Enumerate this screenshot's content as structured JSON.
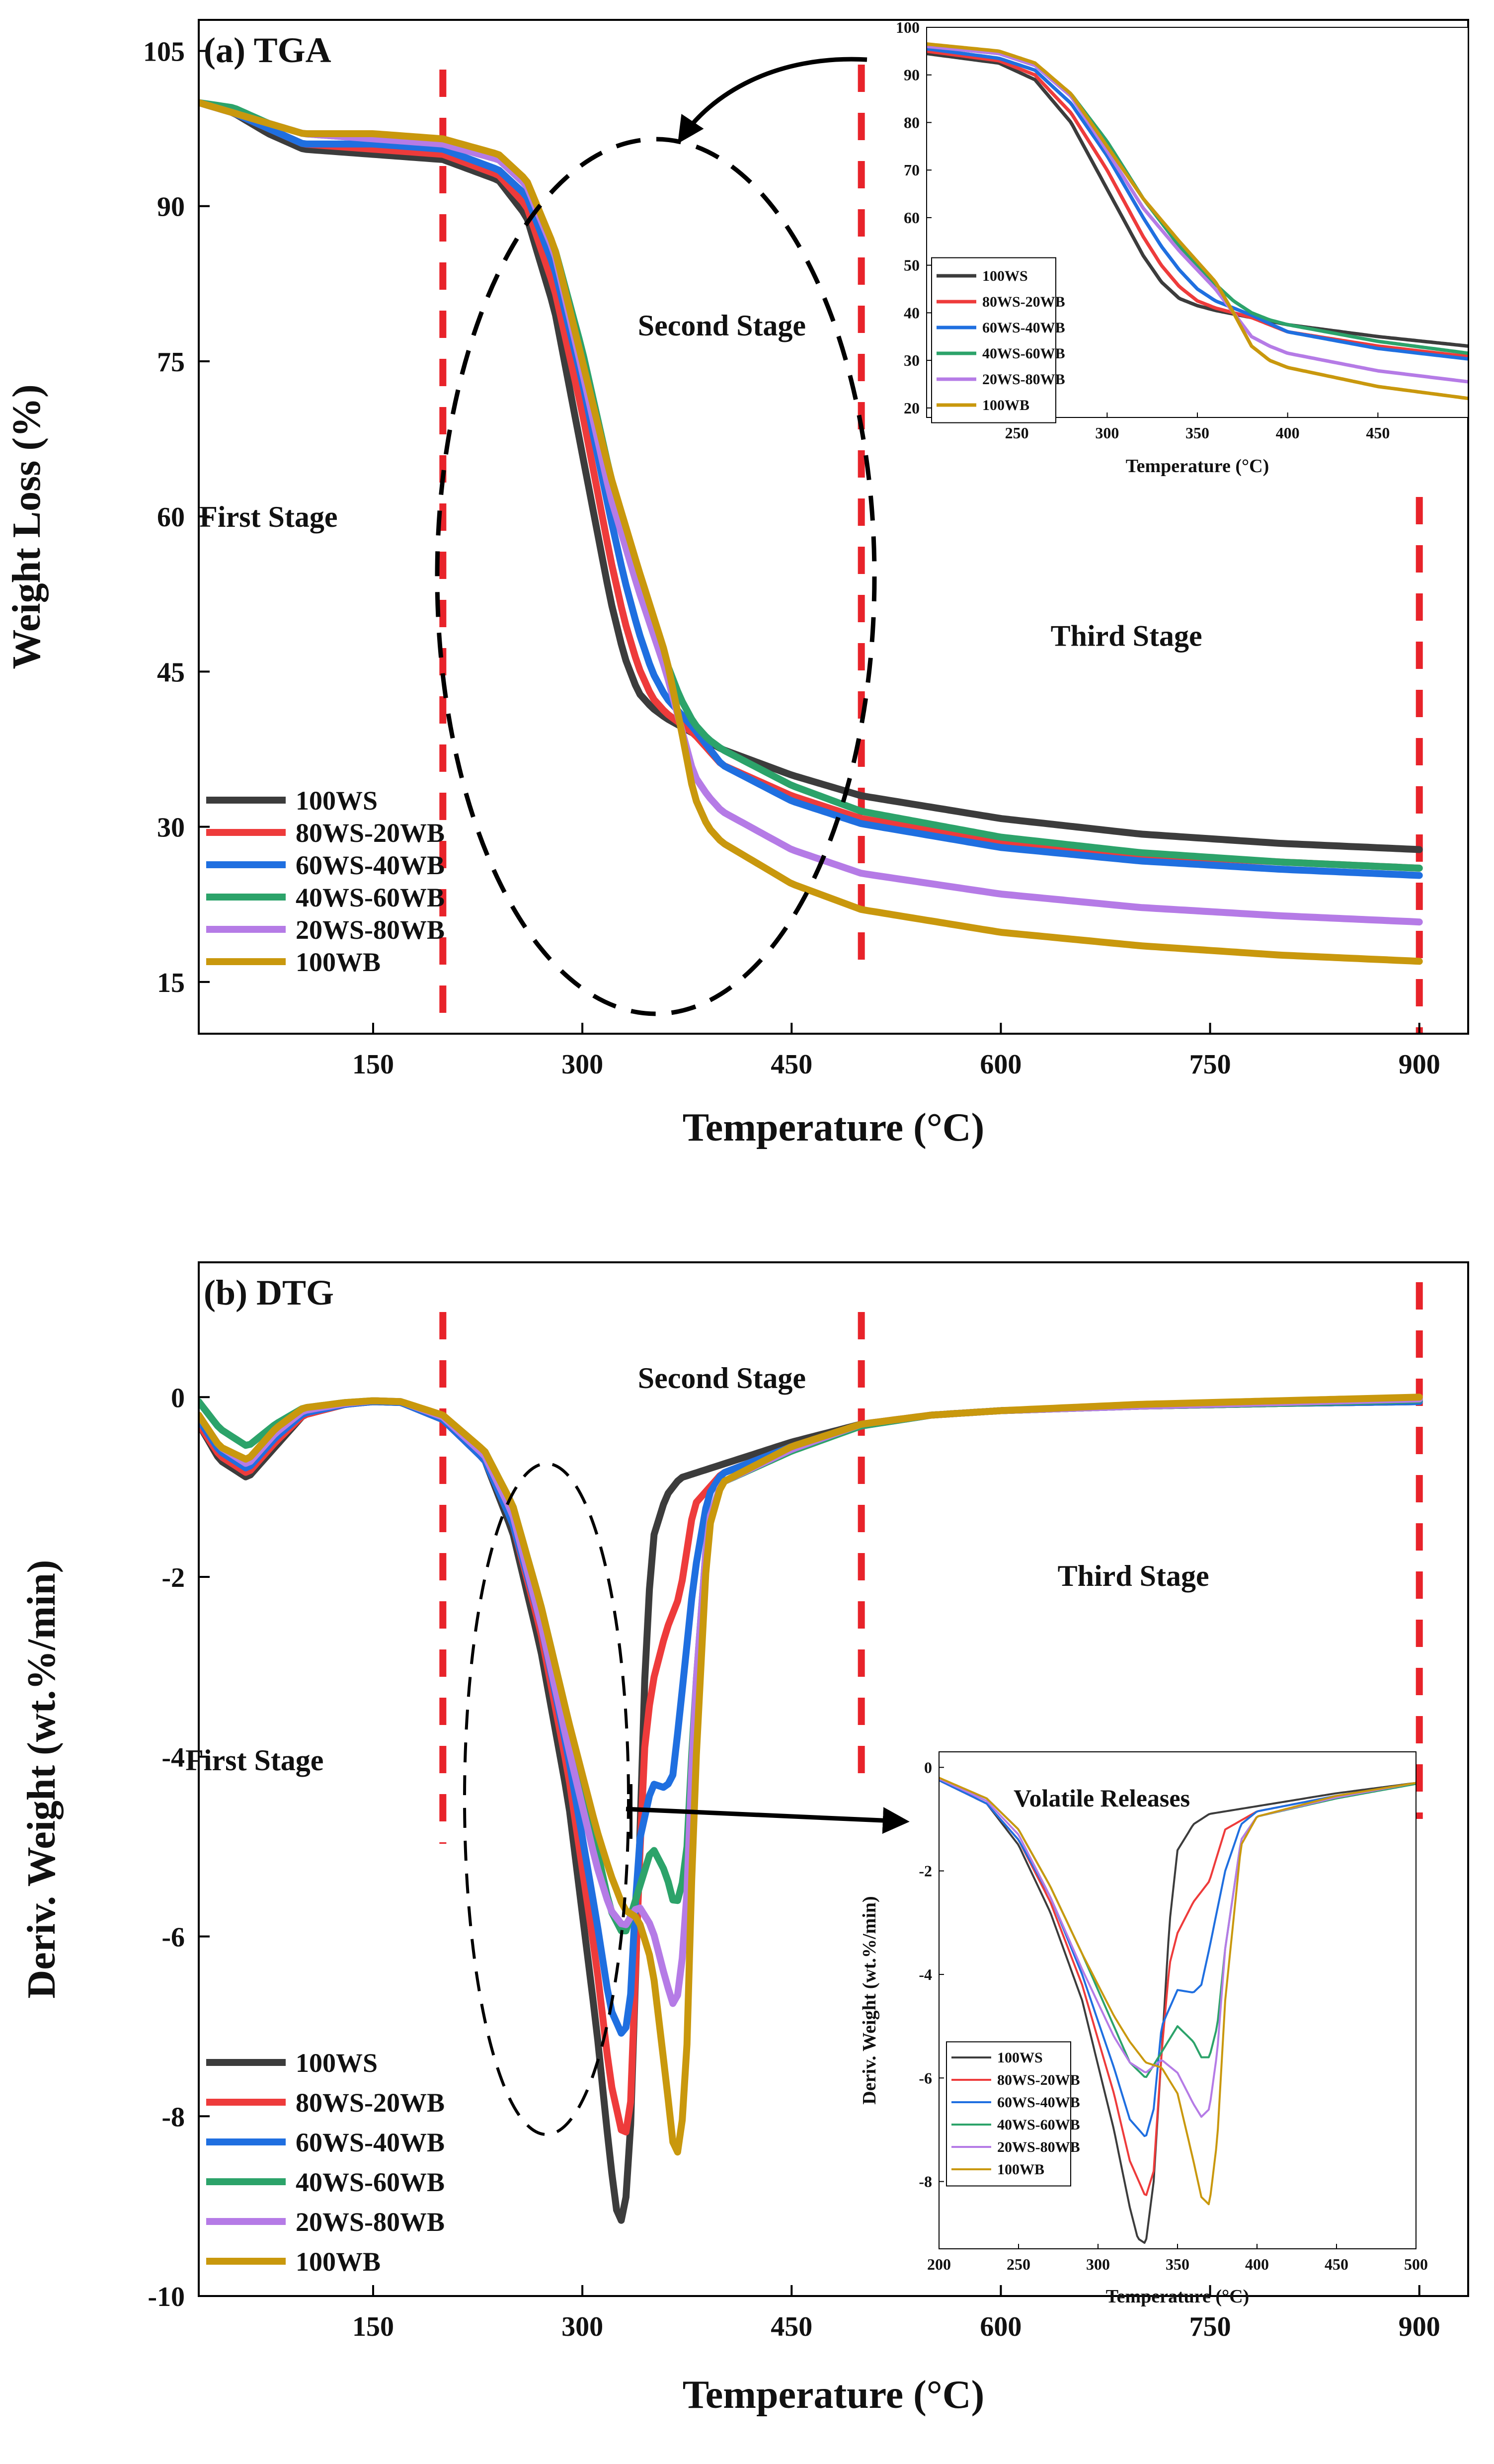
{
  "colors": {
    "100WS": "#3c3c3c",
    "80WS-20WB": "#ee3b3b",
    "60WS-40WB": "#1f6fe0",
    "40WS-60WB": "#2ca36a",
    "20WS-80WB": "#b57be6",
    "100WB": "#c9980d",
    "stage_divider": "#e8232a"
  },
  "chart_data": [
    {
      "id": "tga",
      "type": "line",
      "title": "(a) TGA",
      "xlabel": "Temperature (°C)",
      "ylabel": "Weight Loss (%)",
      "xlim": [
        25,
        935
      ],
      "ylim": [
        10,
        108
      ],
      "xticks": [
        150,
        300,
        450,
        600,
        750,
        900
      ],
      "yticks": [
        15,
        30,
        45,
        60,
        75,
        90,
        105
      ],
      "stage_lines_x": [
        200,
        500,
        900
      ],
      "stage_labels": [
        {
          "text": "First Stage",
          "x": 75,
          "y": 59
        },
        {
          "text": "Second Stage",
          "x": 400,
          "y": 77.5
        },
        {
          "text": "Third Stage",
          "x": 690,
          "y": 47.5
        }
      ],
      "annotation": "dashed ellipse around second stage with arrow to inset",
      "series": [
        {
          "name": "100WS",
          "x": [
            25,
            50,
            75,
            100,
            150,
            200,
            240,
            260,
            280,
            300,
            320,
            330,
            340,
            350,
            360,
            380,
            400,
            450,
            500,
            600,
            700,
            800,
            900
          ],
          "y": [
            100,
            99,
            97,
            95.5,
            95,
            94.5,
            92.5,
            89,
            80,
            66,
            52,
            46.5,
            43,
            41.5,
            40.5,
            39,
            37.5,
            35,
            33,
            30.8,
            29.3,
            28.4,
            27.8
          ]
        },
        {
          "name": "80WS-20WB",
          "x": [
            25,
            50,
            75,
            100,
            150,
            200,
            240,
            260,
            280,
            300,
            320,
            330,
            340,
            350,
            360,
            370,
            380,
            400,
            450,
            500,
            600,
            700,
            800,
            900
          ],
          "y": [
            100,
            99,
            97.5,
            96,
            95.5,
            95,
            93,
            90,
            82,
            70,
            56,
            50,
            45.5,
            42.5,
            41,
            40,
            39,
            36,
            33,
            30.8,
            28.5,
            27.3,
            26.6,
            26.0
          ]
        },
        {
          "name": "60WS-40WB",
          "x": [
            25,
            50,
            75,
            100,
            150,
            200,
            240,
            260,
            280,
            300,
            320,
            330,
            340,
            350,
            360,
            370,
            380,
            400,
            450,
            500,
            600,
            700,
            800,
            900
          ],
          "y": [
            100,
            99,
            97.5,
            96,
            96,
            95.5,
            93.5,
            91,
            84,
            73,
            60,
            54,
            49,
            45,
            42.5,
            41,
            39.5,
            36,
            32.5,
            30.3,
            28,
            26.7,
            25.9,
            25.3
          ]
        },
        {
          "name": "40WS-60WB",
          "x": [
            25,
            50,
            75,
            100,
            150,
            200,
            240,
            260,
            280,
            300,
            320,
            340,
            360,
            370,
            380,
            390,
            400,
            450,
            500,
            600,
            700,
            800,
            900
          ],
          "y": [
            100,
            99.5,
            98,
            97,
            96.5,
            96,
            94.5,
            92,
            86,
            76,
            64,
            54,
            46,
            42.5,
            40,
            38.5,
            37.5,
            34,
            31.5,
            29,
            27.5,
            26.6,
            26.0
          ]
        },
        {
          "name": "20WS-80WB",
          "x": [
            25,
            50,
            75,
            100,
            150,
            200,
            240,
            260,
            280,
            300,
            320,
            340,
            360,
            370,
            380,
            390,
            400,
            450,
            500,
            600,
            700,
            800,
            900
          ],
          "y": [
            100,
            99,
            98,
            97,
            96.5,
            96,
            94.5,
            92,
            85.5,
            74,
            62,
            53,
            45,
            40,
            35,
            33,
            31.5,
            27.8,
            25.5,
            23.5,
            22.2,
            21.4,
            20.8
          ]
        },
        {
          "name": "100WB",
          "x": [
            25,
            50,
            75,
            100,
            150,
            200,
            240,
            260,
            280,
            300,
            320,
            340,
            360,
            370,
            380,
            390,
            400,
            450,
            500,
            600,
            700,
            800,
            900
          ],
          "y": [
            100,
            99,
            98,
            97,
            97,
            96.5,
            95,
            92.5,
            86,
            75,
            64,
            55,
            46.5,
            40,
            33,
            30,
            28.5,
            24.5,
            22,
            19.8,
            18.5,
            17.6,
            17.0
          ]
        }
      ],
      "legend": [
        "100WS",
        "80WS-20WB",
        "60WS-40WB",
        "40WS-60WB",
        "20WS-80WB",
        "100WB"
      ]
    },
    {
      "id": "tga_inset",
      "type": "line",
      "title": "",
      "xlabel": "Temperature (°C)",
      "ylabel": "",
      "xlim": [
        200,
        500
      ],
      "ylim": [
        18,
        100
      ],
      "xticks": [
        250,
        300,
        350,
        400,
        450
      ],
      "yticks": [
        20,
        30,
        40,
        50,
        60,
        70,
        80,
        90,
        100
      ],
      "legend": [
        "100WS",
        "80WS-20WB",
        "60WS-40WB",
        "40WS-60WB",
        "20WS-80WB",
        "100WB"
      ],
      "note": "zoom of TGA curves, 200–500 °C"
    },
    {
      "id": "dtg",
      "type": "line",
      "title": "(b) DTG",
      "xlabel": "Temperature (°C)",
      "ylabel": "Deriv. Weight (wt.%/min)",
      "xlim": [
        25,
        935
      ],
      "ylim": [
        -10,
        1.5
      ],
      "xticks": [
        150,
        300,
        450,
        600,
        750,
        900
      ],
      "yticks": [
        0,
        -2,
        -4,
        -6,
        -8,
        -10
      ],
      "stage_lines_x": [
        200,
        500,
        900
      ],
      "stage_labels": [
        {
          "text": "First Stage",
          "x": 65,
          "y": -4.15
        },
        {
          "text": "Second Stage",
          "x": 400,
          "y": 0.1
        },
        {
          "text": "Third Stage",
          "x": 695,
          "y": -2.1
        }
      ],
      "series": [
        {
          "name": "100WS",
          "x": [
            25,
            40,
            60,
            80,
            100,
            130,
            150,
            170,
            200,
            230,
            250,
            270,
            290,
            310,
            320,
            325,
            330,
            335,
            340,
            345,
            350,
            360,
            370,
            380,
            400,
            450,
            500,
            550,
            600,
            700,
            800,
            900
          ],
          "y": [
            -0.3,
            -0.7,
            -0.9,
            -0.55,
            -0.2,
            -0.08,
            -0.05,
            -0.06,
            -0.25,
            -0.7,
            -1.5,
            -2.8,
            -4.5,
            -7.0,
            -8.5,
            -9.1,
            -9.2,
            -8.0,
            -5.5,
            -3.0,
            -1.6,
            -1.1,
            -0.9,
            -0.85,
            -0.75,
            -0.5,
            -0.3,
            -0.2,
            -0.15,
            -0.1,
            -0.07,
            -0.05
          ]
        },
        {
          "name": "80WS-20WB",
          "x": [
            25,
            40,
            60,
            80,
            100,
            130,
            150,
            170,
            200,
            230,
            250,
            270,
            290,
            310,
            320,
            330,
            335,
            340,
            345,
            350,
            360,
            370,
            380,
            400,
            450,
            500,
            550,
            600,
            700,
            800,
            900
          ],
          "y": [
            -0.3,
            -0.65,
            -0.85,
            -0.5,
            -0.2,
            -0.08,
            -0.05,
            -0.06,
            -0.25,
            -0.7,
            -1.4,
            -2.6,
            -4.2,
            -6.3,
            -7.6,
            -8.3,
            -7.8,
            -5.5,
            -3.8,
            -3.2,
            -2.6,
            -2.2,
            -1.2,
            -0.85,
            -0.55,
            -0.32,
            -0.2,
            -0.15,
            -0.1,
            -0.07,
            -0.05
          ]
        },
        {
          "name": "60WS-40WB",
          "x": [
            25,
            40,
            60,
            80,
            100,
            130,
            150,
            170,
            200,
            230,
            250,
            270,
            290,
            310,
            320,
            330,
            335,
            340,
            350,
            360,
            365,
            370,
            380,
            390,
            400,
            450,
            500,
            550,
            600,
            700,
            800,
            900
          ],
          "y": [
            -0.25,
            -0.6,
            -0.8,
            -0.45,
            -0.18,
            -0.08,
            -0.05,
            -0.06,
            -0.25,
            -0.7,
            -1.4,
            -2.5,
            -4.0,
            -5.8,
            -6.8,
            -7.15,
            -6.6,
            -5.0,
            -4.3,
            -4.35,
            -4.2,
            -3.5,
            -2.0,
            -1.1,
            -0.85,
            -0.55,
            -0.32,
            -0.2,
            -0.15,
            -0.1,
            -0.07,
            -0.05
          ]
        },
        {
          "name": "40WS-60WB",
          "x": [
            25,
            40,
            60,
            80,
            100,
            130,
            150,
            170,
            200,
            230,
            250,
            270,
            290,
            310,
            320,
            330,
            340,
            350,
            360,
            365,
            370,
            375,
            380,
            390,
            400,
            450,
            500,
            550,
            600,
            700,
            800,
            900
          ],
          "y": [
            -0.05,
            -0.35,
            -0.55,
            -0.3,
            -0.12,
            -0.06,
            -0.04,
            -0.05,
            -0.22,
            -0.6,
            -1.2,
            -2.3,
            -3.6,
            -5.0,
            -5.7,
            -6.0,
            -5.5,
            -5.0,
            -5.3,
            -5.6,
            -5.6,
            -5.0,
            -3.5,
            -1.4,
            -0.95,
            -0.6,
            -0.32,
            -0.2,
            -0.15,
            -0.1,
            -0.07,
            -0.03
          ]
        },
        {
          "name": "20WS-80WB",
          "x": [
            25,
            40,
            60,
            80,
            100,
            130,
            150,
            170,
            200,
            230,
            250,
            270,
            290,
            310,
            320,
            330,
            340,
            350,
            360,
            365,
            370,
            375,
            380,
            390,
            400,
            450,
            500,
            550,
            600,
            700,
            800,
            900
          ],
          "y": [
            -0.2,
            -0.55,
            -0.75,
            -0.4,
            -0.15,
            -0.07,
            -0.04,
            -0.05,
            -0.22,
            -0.65,
            -1.3,
            -2.5,
            -3.9,
            -5.2,
            -5.7,
            -5.9,
            -5.65,
            -5.9,
            -6.5,
            -6.75,
            -6.6,
            -5.5,
            -3.5,
            -1.4,
            -0.95,
            -0.58,
            -0.3,
            -0.2,
            -0.15,
            -0.1,
            -0.06,
            -0.02
          ]
        },
        {
          "name": "100WB",
          "x": [
            25,
            40,
            60,
            80,
            100,
            130,
            150,
            170,
            200,
            230,
            250,
            270,
            290,
            310,
            320,
            330,
            340,
            350,
            360,
            365,
            370,
            375,
            380,
            390,
            400,
            450,
            500,
            550,
            600,
            700,
            800,
            900
          ],
          "y": [
            -0.2,
            -0.55,
            -0.7,
            -0.35,
            -0.12,
            -0.06,
            -0.04,
            -0.05,
            -0.2,
            -0.6,
            -1.2,
            -2.3,
            -3.6,
            -4.8,
            -5.3,
            -5.7,
            -5.8,
            -6.3,
            -7.6,
            -8.3,
            -8.45,
            -7.2,
            -4.5,
            -1.5,
            -0.95,
            -0.55,
            -0.3,
            -0.2,
            -0.15,
            -0.08,
            -0.04,
            0.0
          ]
        }
      ],
      "legend": [
        "100WS",
        "80WS-20WB",
        "60WS-40WB",
        "40WS-60WB",
        "20WS-80WB",
        "100WB"
      ]
    },
    {
      "id": "dtg_inset",
      "type": "line",
      "title": "Volatile Releases",
      "xlabel": "Temperature (°C)",
      "ylabel": "Deriv. Weight (wt.%/min)",
      "xlim": [
        200,
        500
      ],
      "ylim": [
        -9.3,
        0.3
      ],
      "xticks": [
        200,
        250,
        300,
        350,
        400,
        450,
        500
      ],
      "yticks": [
        0,
        -2,
        -4,
        -6,
        -8
      ],
      "legend": [
        "100WS",
        "80WS-20WB",
        "60WS-40WB",
        "40WS-60WB",
        "20WS-80WB",
        "100WB"
      ],
      "note": "zoom of DTG curves, 200–500 °C"
    }
  ]
}
